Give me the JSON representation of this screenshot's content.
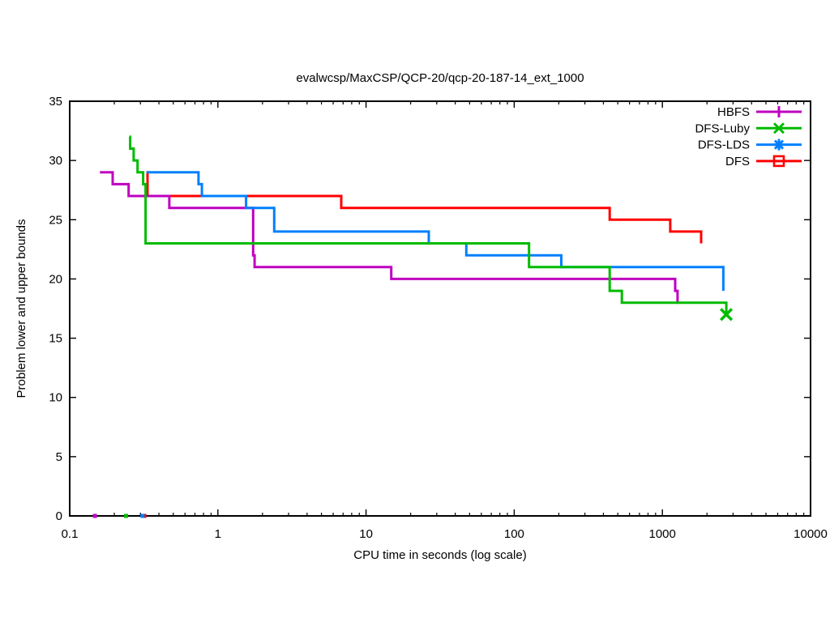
{
  "chart_data": {
    "type": "line",
    "title": "evalwcsp/MaxCSP/QCP-20/qcp-20-187-14_ext_1000",
    "xlabel": "CPU time in seconds (log scale)",
    "ylabel": "Problem lower and upper bounds",
    "x_axis": {
      "scale": "log",
      "min": 0.1,
      "max": 10000,
      "major_ticks": [
        0.1,
        1,
        10,
        100,
        1000,
        10000
      ],
      "tick_labels": [
        "0.1",
        "1",
        "10",
        "100",
        "1000",
        "10000"
      ],
      "minor_tick_multiples": [
        2,
        3,
        4,
        5,
        6,
        7,
        8,
        9
      ]
    },
    "y_axis": {
      "scale": "linear",
      "min": 0,
      "max": 35,
      "major_ticks": [
        0,
        5,
        10,
        15,
        20,
        25,
        30,
        35
      ]
    },
    "grid": false,
    "legend_position": "top-right-inside",
    "series": [
      {
        "name": "HBFS",
        "color": "#bf00bf",
        "marker": "plus",
        "draw_order": 1,
        "lower_bound_start": [
          0.148,
          0
        ],
        "upper_bound_steps": [
          [
            0.16,
            29
          ],
          [
            0.195,
            28
          ],
          [
            0.25,
            27
          ],
          [
            0.47,
            26
          ],
          [
            1.73,
            22
          ],
          [
            1.77,
            21
          ],
          [
            14.8,
            20
          ],
          [
            1220,
            19
          ],
          [
            1265,
            18
          ]
        ],
        "end_time": 1280,
        "end_marker": false
      },
      {
        "name": "DFS-Luby",
        "color": "#00bb00",
        "marker": "cross",
        "draw_order": 3,
        "lower_bound_start": [
          0.24,
          0
        ],
        "upper_bound_steps": [
          [
            0.253,
            32
          ],
          [
            0.256,
            31
          ],
          [
            0.27,
            30
          ],
          [
            0.287,
            29
          ],
          [
            0.313,
            28
          ],
          [
            0.325,
            23
          ],
          [
            126,
            21
          ],
          [
            441,
            19
          ],
          [
            533,
            18
          ],
          [
            2700,
            17
          ]
        ],
        "end_time": 2700,
        "end_marker": true
      },
      {
        "name": "DFS-LDS",
        "color": "#0080ff",
        "marker": "star",
        "draw_order": 2,
        "lower_bound_start": [
          0.31,
          0
        ],
        "upper_bound_steps": [
          [
            0.33,
            29
          ],
          [
            0.74,
            28
          ],
          [
            0.78,
            27
          ],
          [
            1.55,
            26
          ],
          [
            2.4,
            24
          ],
          [
            26.5,
            23
          ],
          [
            47.5,
            22
          ],
          [
            208,
            21
          ],
          [
            2580,
            19
          ]
        ],
        "end_time": 2580,
        "end_marker": false
      },
      {
        "name": "DFS",
        "color": "#ff0000",
        "marker": "square",
        "draw_order": 0,
        "lower_bound_start": [
          0.319,
          0
        ],
        "upper_bound_steps": [
          [
            0.33,
            29
          ],
          [
            0.335,
            27
          ],
          [
            6.8,
            26
          ],
          [
            441,
            25
          ],
          [
            1130,
            24
          ],
          [
            1825,
            23
          ]
        ],
        "end_time": 1825,
        "end_marker": false
      }
    ]
  }
}
